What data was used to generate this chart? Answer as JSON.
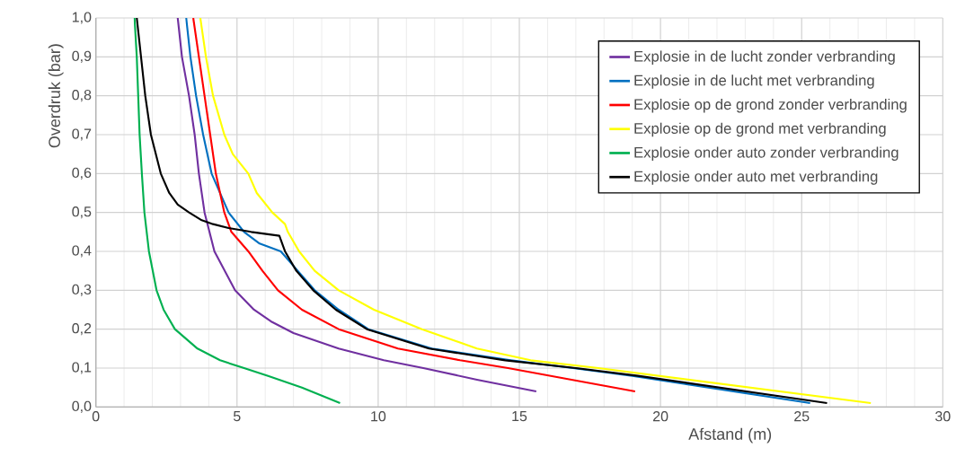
{
  "chart_data": {
    "type": "line",
    "xlabel": "Afstand (m)",
    "ylabel": "Overdruk (bar)",
    "xlim": [
      0,
      30
    ],
    "ylim": [
      0,
      1
    ],
    "xticks": [
      0,
      5,
      10,
      15,
      20,
      25,
      30
    ],
    "yticks": [
      {
        "value": 0,
        "label": "0,0"
      },
      {
        "value": 0.1,
        "label": "0,1"
      },
      {
        "value": 0.2,
        "label": "0,2"
      },
      {
        "value": 0.3,
        "label": "0,3"
      },
      {
        "value": 0.4,
        "label": "0,4"
      },
      {
        "value": 0.5,
        "label": "0,5"
      },
      {
        "value": 0.6,
        "label": "0,6"
      },
      {
        "value": 0.7,
        "label": "0,7"
      },
      {
        "value": 0.8,
        "label": "0,8"
      },
      {
        "value": 0.9,
        "label": "0,9"
      },
      {
        "value": 1.0,
        "label": "1,0"
      }
    ],
    "grid": true,
    "legend": "top right",
    "marker": "none",
    "line_style": "solid",
    "series": [
      {
        "name": "Explosie in de lucht zonder verbranding",
        "color": "#7030a0",
        "x": [
          2.9,
          3.05,
          3.3,
          3.5,
          3.65,
          3.85,
          4.2,
          4.93,
          5.6,
          6.2,
          7.0,
          8.6,
          10.2,
          11.6,
          13.5,
          15.6
        ],
        "values": [
          1.0,
          0.9,
          0.8,
          0.7,
          0.6,
          0.5,
          0.4,
          0.3,
          0.25,
          0.22,
          0.19,
          0.15,
          0.12,
          0.1,
          0.07,
          0.04
        ]
      },
      {
        "name": "Explosie in de lucht met verbranding",
        "color": "#0070c0",
        "x": [
          3.2,
          3.35,
          3.55,
          3.8,
          4.1,
          4.7,
          5.25,
          5.8,
          6.55,
          7.15,
          7.75,
          8.6,
          9.65,
          11.9,
          14.7,
          16.9,
          19.0,
          25.3
        ],
        "values": [
          1.0,
          0.9,
          0.8,
          0.7,
          0.6,
          0.5,
          0.45,
          0.42,
          0.4,
          0.35,
          0.3,
          0.25,
          0.2,
          0.15,
          0.12,
          0.1,
          0.08,
          0.01
        ]
      },
      {
        "name": "Explosie op de grond zonder verbranding",
        "color": "#ff0000",
        "x": [
          3.45,
          3.65,
          3.85,
          4.05,
          4.25,
          4.55,
          4.8,
          5.4,
          5.9,
          6.45,
          7.3,
          8.6,
          10.7,
          12.9,
          14.6,
          19.1
        ],
        "values": [
          1.0,
          0.9,
          0.8,
          0.7,
          0.6,
          0.5,
          0.45,
          0.4,
          0.35,
          0.3,
          0.25,
          0.2,
          0.15,
          0.12,
          0.1,
          0.04
        ]
      },
      {
        "name": "Explosie op de grond met verbranding",
        "color": "#ffff00",
        "x": [
          3.7,
          3.9,
          4.15,
          4.55,
          4.85,
          5.4,
          5.7,
          6.25,
          6.7,
          6.8,
          7.2,
          7.75,
          8.6,
          9.85,
          11.55,
          13.5,
          15.4,
          17.8,
          27.45
        ],
        "values": [
          1.0,
          0.9,
          0.8,
          0.7,
          0.65,
          0.6,
          0.55,
          0.5,
          0.47,
          0.45,
          0.4,
          0.35,
          0.3,
          0.25,
          0.2,
          0.15,
          0.12,
          0.1,
          0.01
        ]
      },
      {
        "name": "Explosie onder auto zonder verbranding",
        "color": "#00b050",
        "x": [
          1.37,
          1.45,
          1.5,
          1.55,
          1.63,
          1.72,
          1.88,
          2.15,
          2.4,
          2.8,
          3.6,
          4.4,
          5.25,
          6.1,
          7.3,
          8.65
        ],
        "values": [
          1.0,
          0.9,
          0.8,
          0.7,
          0.6,
          0.5,
          0.4,
          0.3,
          0.25,
          0.2,
          0.15,
          0.12,
          0.1,
          0.08,
          0.05,
          0.01
        ]
      },
      {
        "name": "Explosie onder auto met verbranding",
        "color": "#000000",
        "x": [
          1.45,
          1.6,
          1.75,
          1.95,
          2.3,
          2.6,
          2.9,
          3.3,
          3.75,
          4.15,
          4.7,
          5.5,
          6.5,
          6.65,
          6.7,
          7.1,
          7.7,
          8.5,
          9.6,
          11.8,
          14.5,
          17.0,
          19.2,
          25.9
        ],
        "values": [
          1.0,
          0.9,
          0.8,
          0.7,
          0.6,
          0.55,
          0.52,
          0.5,
          0.48,
          0.47,
          0.46,
          0.45,
          0.44,
          0.41,
          0.4,
          0.35,
          0.3,
          0.25,
          0.2,
          0.15,
          0.12,
          0.1,
          0.08,
          0.01
        ]
      }
    ]
  }
}
